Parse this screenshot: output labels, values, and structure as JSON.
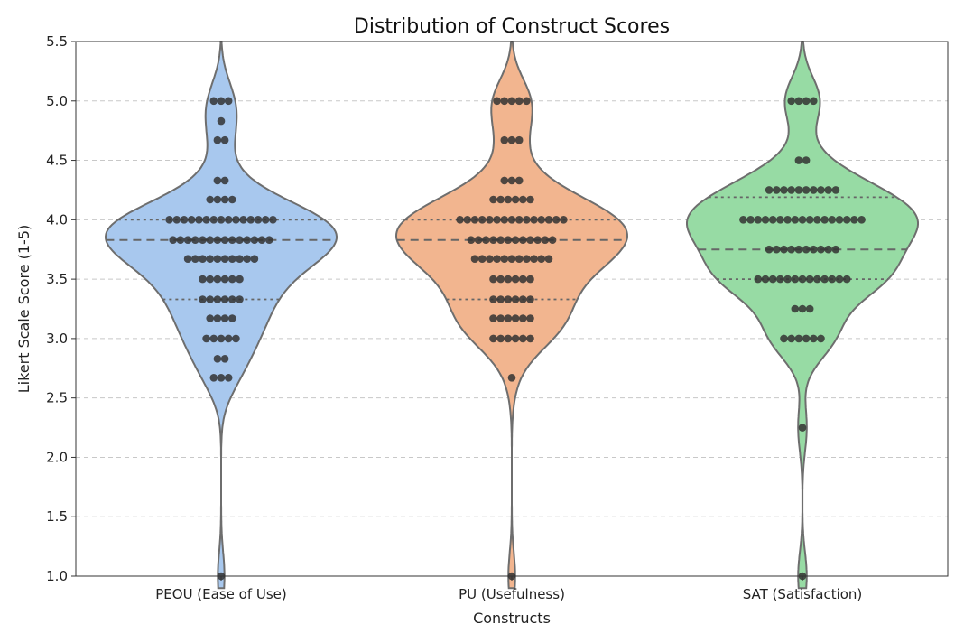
{
  "chart_data": {
    "type": "violin",
    "title": "Distribution of Construct Scores",
    "xlabel": "Constructs",
    "ylabel": "Likert Scale Score (1-5)",
    "ylim": [
      1.0,
      5.5
    ],
    "yticks": [
      "1.0",
      "1.5",
      "2.0",
      "2.5",
      "3.0",
      "3.5",
      "4.0",
      "4.5",
      "5.0",
      "5.5"
    ],
    "grid": "horizontal-dashed",
    "inner": "quartile",
    "overlay": "swarm",
    "series": [
      {
        "category": "PEOU (Ease of Use)",
        "color": "#a8c8ee",
        "quartiles": [
          3.33,
          3.83,
          4.0
        ],
        "points": [
          {
            "y": 5.0,
            "n": 3
          },
          {
            "y": 4.83,
            "n": 1
          },
          {
            "y": 4.67,
            "n": 2
          },
          {
            "y": 4.33,
            "n": 2
          },
          {
            "y": 4.17,
            "n": 4
          },
          {
            "y": 4.0,
            "n": 15
          },
          {
            "y": 3.83,
            "n": 14
          },
          {
            "y": 3.67,
            "n": 10
          },
          {
            "y": 3.5,
            "n": 6
          },
          {
            "y": 3.33,
            "n": 6
          },
          {
            "y": 3.17,
            "n": 4
          },
          {
            "y": 3.0,
            "n": 5
          },
          {
            "y": 2.83,
            "n": 2
          },
          {
            "y": 2.67,
            "n": 3
          },
          {
            "y": 1.0,
            "n": 1
          }
        ]
      },
      {
        "category": "PU (Usefulness)",
        "color": "#f2b58f",
        "quartiles": [
          3.33,
          3.83,
          4.0
        ],
        "points": [
          {
            "y": 5.0,
            "n": 5
          },
          {
            "y": 4.67,
            "n": 3
          },
          {
            "y": 4.33,
            "n": 3
          },
          {
            "y": 4.17,
            "n": 6
          },
          {
            "y": 4.0,
            "n": 15
          },
          {
            "y": 3.83,
            "n": 12
          },
          {
            "y": 3.67,
            "n": 11
          },
          {
            "y": 3.5,
            "n": 6
          },
          {
            "y": 3.33,
            "n": 6
          },
          {
            "y": 3.17,
            "n": 6
          },
          {
            "y": 3.0,
            "n": 6
          },
          {
            "y": 2.67,
            "n": 1
          },
          {
            "y": 1.0,
            "n": 1
          }
        ]
      },
      {
        "category": "SAT (Satisfaction)",
        "color": "#97dba4",
        "quartiles": [
          3.5,
          3.75,
          4.19
        ],
        "points": [
          {
            "y": 5.0,
            "n": 4
          },
          {
            "y": 4.5,
            "n": 2
          },
          {
            "y": 4.25,
            "n": 10
          },
          {
            "y": 4.0,
            "n": 17
          },
          {
            "y": 3.75,
            "n": 10
          },
          {
            "y": 3.5,
            "n": 13
          },
          {
            "y": 3.25,
            "n": 3
          },
          {
            "y": 3.0,
            "n": 6
          },
          {
            "y": 2.25,
            "n": 1
          },
          {
            "y": 1.0,
            "n": 1
          }
        ]
      }
    ]
  }
}
